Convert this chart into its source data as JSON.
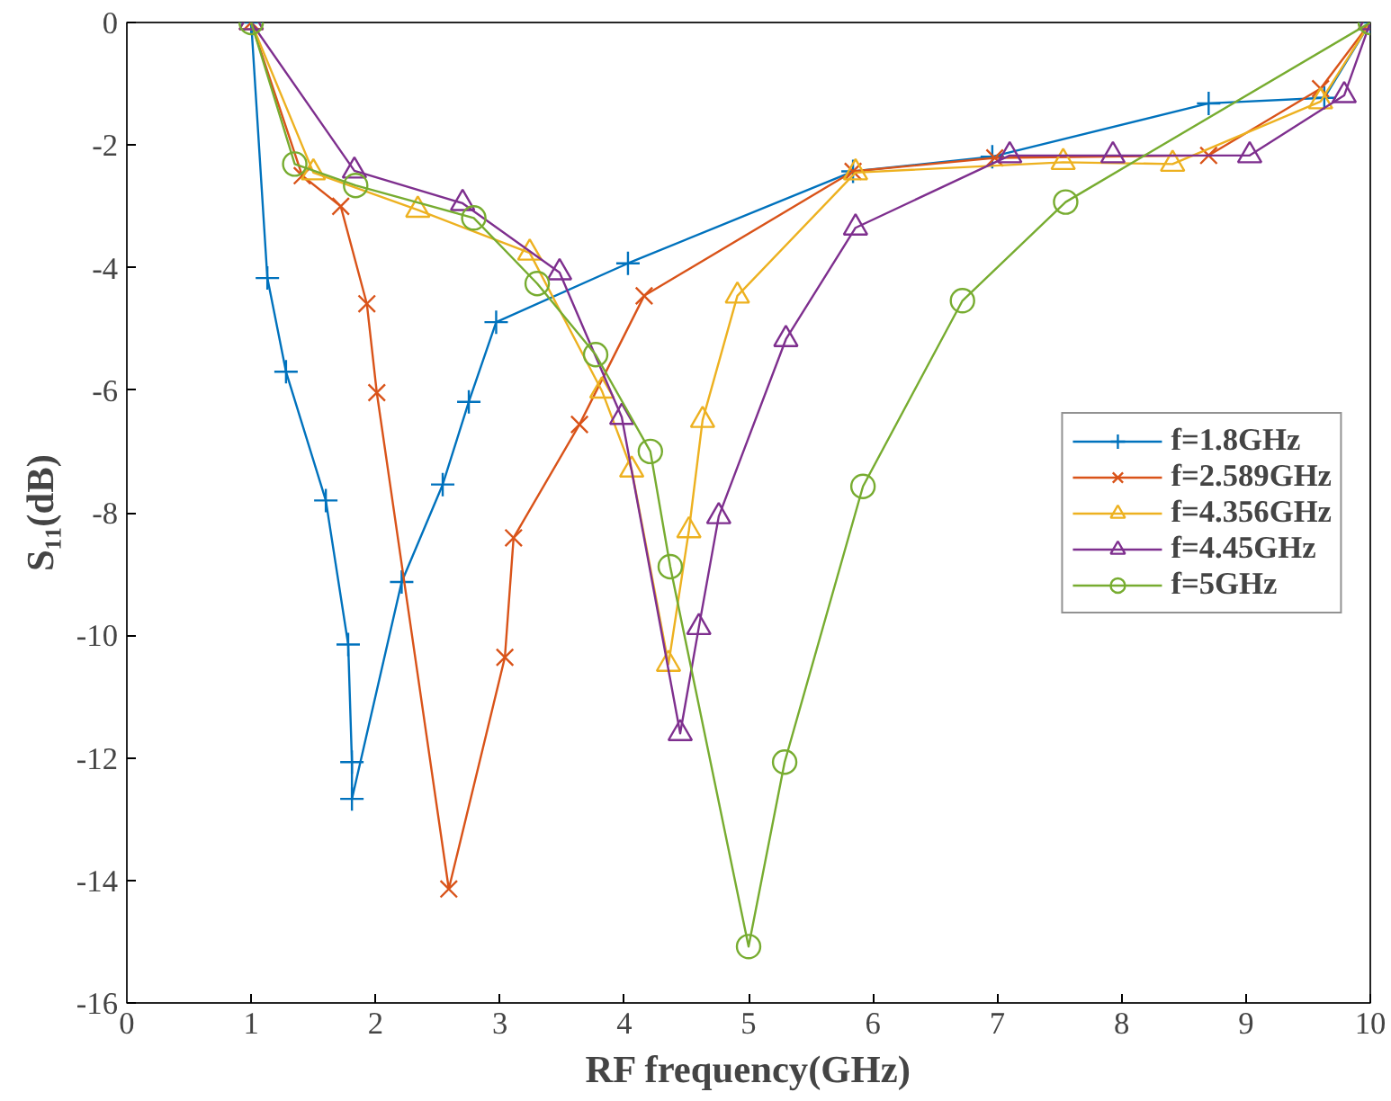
{
  "chart_data": {
    "type": "line",
    "xlabel": "RF frequency(GHz)",
    "ylabel": "S₁₁(dB)",
    "xlim": [
      0,
      10
    ],
    "ylim": [
      -16,
      0
    ],
    "xticks": [
      0,
      1,
      2,
      3,
      4,
      5,
      6,
      7,
      8,
      9,
      10
    ],
    "yticks": [
      -16,
      -14,
      -12,
      -10,
      -8,
      -6,
      -4,
      -2,
      0
    ],
    "grid": false,
    "legend": "right",
    "line_style": "solid",
    "series": [
      {
        "name": "f=1.8GHz",
        "color": "#0072bd",
        "marker": "cross",
        "x": [
          1,
          1.13,
          1.28,
          1.6,
          1.78,
          1.81,
          1.81,
          2.21,
          2.54,
          2.75,
          2.97,
          4.03,
          5.84,
          6.96,
          8.7,
          9.63,
          10
        ],
        "values": [
          0,
          -4.17,
          -5.7,
          -7.8,
          -10.15,
          -12.07,
          -12.67,
          -9.13,
          -7.54,
          -6.19,
          -4.89,
          -3.93,
          -2.43,
          -2.19,
          -1.32,
          -1.23,
          0
        ]
      },
      {
        "name": "f=2.589GHz",
        "color": "#d95319",
        "marker": "x",
        "x": [
          1,
          1.41,
          1.72,
          1.93,
          2.01,
          2.589,
          3.04,
          3.11,
          3.64,
          4.16,
          5.84,
          6.98,
          8.7,
          9.6,
          10
        ],
        "values": [
          0,
          -2.5,
          -3.0,
          -4.59,
          -6.04,
          -14.14,
          -10.36,
          -8.41,
          -6.56,
          -4.46,
          -2.43,
          -2.21,
          -2.17,
          -1.08,
          0
        ]
      },
      {
        "name": "f=4.356GHz",
        "color": "#edb120",
        "marker": "triangle",
        "x": [
          1,
          1.5,
          2.34,
          3.24,
          3.82,
          4.06,
          4.356,
          4.52,
          4.63,
          4.91,
          5.86,
          7.53,
          8.41,
          9.6,
          10
        ],
        "values": [
          0,
          -2.45,
          -3.06,
          -3.76,
          -6.01,
          -7.3,
          -10.47,
          -8.29,
          -6.49,
          -4.46,
          -2.45,
          -2.28,
          -2.31,
          -1.29,
          0
        ]
      },
      {
        "name": "f=4.45GHz",
        "color": "#7e2f8e",
        "marker": "triangle",
        "x": [
          1,
          1.83,
          2.7,
          3.48,
          3.98,
          4.45,
          4.6,
          4.76,
          5.3,
          5.86,
          7.1,
          7.93,
          9.03,
          9.79,
          10
        ],
        "values": [
          0,
          -2.42,
          -2.95,
          -4.08,
          -6.44,
          -11.6,
          -9.87,
          -8.06,
          -5.17,
          -3.35,
          -2.17,
          -2.17,
          -2.17,
          -1.19,
          0
        ]
      },
      {
        "name": "f=5GHz",
        "color": "#77ac30",
        "marker": "circle",
        "x": [
          1,
          1.35,
          1.84,
          2.79,
          3.3,
          3.77,
          4.21,
          4.37,
          5.0,
          5.29,
          5.92,
          6.72,
          7.55,
          10
        ],
        "values": [
          0,
          -2.31,
          -2.66,
          -3.19,
          -4.26,
          -5.42,
          -7.0,
          -8.88,
          -15.08,
          -12.07,
          -7.57,
          -4.54,
          -2.93,
          0
        ]
      }
    ]
  }
}
